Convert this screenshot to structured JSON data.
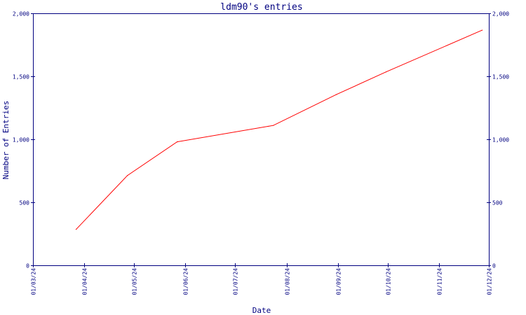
{
  "chart_data": {
    "type": "line",
    "title": "ldm90's entries",
    "xlabel": "Date",
    "ylabel": "Number of Entries",
    "x_tick_labels": [
      "01/03/24",
      "01/04/24",
      "01/05/24",
      "01/06/24",
      "01/07/24",
      "01/08/24",
      "01/09/24",
      "01/10/24",
      "01/11/24",
      "01/12/24"
    ],
    "y_ticks": [
      0,
      500,
      1000,
      1500,
      2000
    ],
    "y_tick_labels": [
      "0",
      "500",
      "1,000",
      "1,500",
      "2,000"
    ],
    "ylim": [
      0,
      2000
    ],
    "xlim": [
      "2024-03-01",
      "2024-12-01"
    ],
    "right_axis_labels": true,
    "grid": false,
    "series": [
      {
        "color": "#ff0000",
        "points": [
          {
            "x": "2024-03-27",
            "y": 285
          },
          {
            "x": "2024-04-27",
            "y": 713
          },
          {
            "x": "2024-05-27",
            "y": 980
          },
          {
            "x": "2024-07-24",
            "y": 1110
          },
          {
            "x": "2024-08-31",
            "y": 1355
          },
          {
            "x": "2024-09-30",
            "y": 1535
          },
          {
            "x": "2024-11-27",
            "y": 1866
          }
        ]
      }
    ],
    "colors": {
      "axis": "#000080",
      "frame": "#000080",
      "line": "#ff0000"
    }
  }
}
